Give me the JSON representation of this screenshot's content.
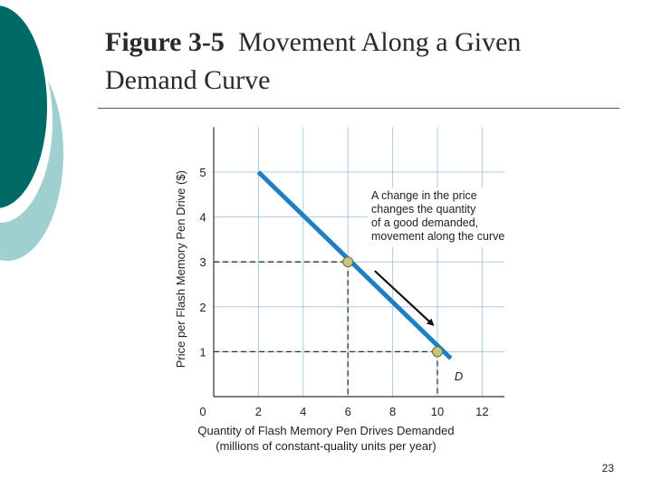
{
  "slide": {
    "title_bold": "Figure 3-5",
    "title_rest": "Movement Along a Given Demand Curve",
    "page_number": "23"
  },
  "colors": {
    "teal_dark": "#006b66",
    "teal_light": "#9fcfcf",
    "curve": "#1f7fc4",
    "grid": "#a9cce6",
    "point_fill": "#c9c47c"
  },
  "chart_data": {
    "type": "line",
    "xlabel": "Quantity of Flash Memory Pen Drives Demanded",
    "xlabel_line2": "(millions of constant-quality units per year)",
    "ylabel": "Price per Flash Memory Pen Drive ($)",
    "xlim": [
      0,
      13
    ],
    "ylim": [
      0,
      6
    ],
    "x_ticks": [
      0,
      2,
      4,
      6,
      8,
      10,
      12
    ],
    "y_ticks": [
      1,
      2,
      3,
      4,
      5
    ],
    "grid": true,
    "series": [
      {
        "name": "D",
        "x": [
          2,
          10.6
        ],
        "y": [
          5,
          0.85
        ]
      }
    ],
    "highlighted_points": [
      {
        "x": 6,
        "y": 3
      },
      {
        "x": 10,
        "y": 1
      }
    ],
    "annotation": {
      "lines": [
        "A change in the price",
        "changes the quantity",
        "of a good demanded,",
        "movement along the curve"
      ],
      "arrow_from": {
        "x": 7.2,
        "y": 2.8
      },
      "arrow_to": {
        "x": 9.8,
        "y": 1.6
      }
    }
  }
}
